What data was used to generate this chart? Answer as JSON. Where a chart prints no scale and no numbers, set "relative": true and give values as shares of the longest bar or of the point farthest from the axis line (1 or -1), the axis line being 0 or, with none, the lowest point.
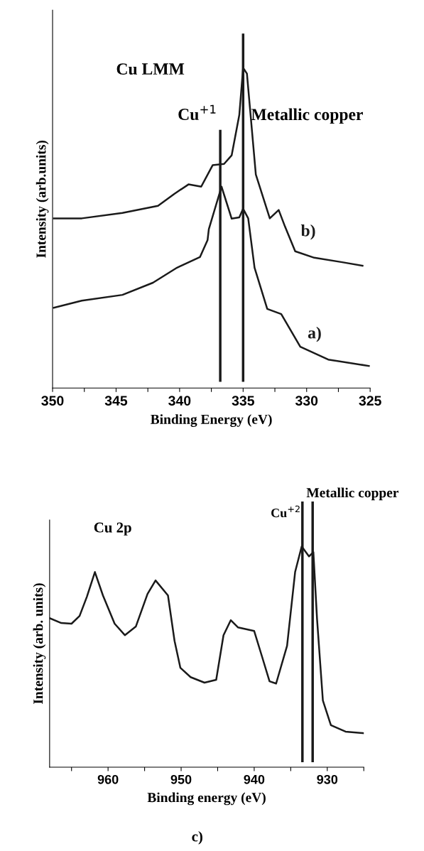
{
  "chart_data": [
    {
      "type": "line",
      "relative": true,
      "xlabel": "Binding Energy (eV)",
      "ylabel": "Intensity (arb.units)",
      "xlim": [
        350,
        325
      ],
      "xticks": [
        350,
        {
          "value": 347.5,
          "label": null
        },
        345,
        {
          "value": 342.5,
          "label": null
        },
        340,
        {
          "value": 337.5,
          "label": null
        },
        335,
        {
          "value": 332.5,
          "label": null
        },
        330,
        {
          "value": 327.5,
          "label": null
        },
        325
      ],
      "series": [
        {
          "name": "b)",
          "color": "#1a1a1a",
          "x": [
            349.9,
            347.7,
            344.5,
            341.7,
            340.4,
            339.3,
            338.3,
            337.4,
            336.5,
            335.9,
            335.3,
            335.0,
            334.7,
            334.0,
            332.9,
            332.2,
            331.7,
            330.9,
            329.4,
            327.2,
            325.6
          ],
          "values": [
            0.53,
            0.53,
            0.547,
            0.569,
            0.607,
            0.636,
            0.629,
            0.696,
            0.7,
            0.727,
            0.853,
            1.0,
            0.982,
            0.667,
            0.53,
            0.556,
            0.504,
            0.427,
            0.407,
            0.393,
            0.382
          ]
        },
        {
          "name": "a)",
          "color": "#1a1a1a",
          "x": [
            349.9,
            347.7,
            344.5,
            342.1,
            340.2,
            338.4,
            337.8,
            337.7,
            336.7,
            335.9,
            335.3,
            335.0,
            334.6,
            334.1,
            333.1,
            332.0,
            330.5,
            328.3,
            325.1
          ],
          "values": [
            0.251,
            0.273,
            0.291,
            0.329,
            0.376,
            0.409,
            0.462,
            0.496,
            0.629,
            0.529,
            0.533,
            0.56,
            0.53,
            0.376,
            0.247,
            0.231,
            0.129,
            0.089,
            0.069
          ]
        }
      ],
      "ref_lines": [
        {
          "axis": "x",
          "value": 336.8,
          "label": "Cu$^{+1}$",
          "color": "#1a1a1a"
        },
        {
          "axis": "x",
          "value": 335.0,
          "label": "Metallic copper",
          "color": "#1a1a1a"
        }
      ],
      "annotations": [
        "Cu LMM"
      ]
    },
    {
      "type": "line",
      "relative": true,
      "xlabel": "Binding energy (eV)",
      "ylabel": "Intensity (arb. units)",
      "xlim": [
        968,
        925
      ],
      "xticks": [
        {
          "value": 965,
          "label": null
        },
        960,
        {
          "value": 955,
          "label": null
        },
        950,
        {
          "value": 945,
          "label": null
        },
        940,
        {
          "value": 935,
          "label": null
        },
        930,
        {
          "value": 925,
          "label": null
        }
      ],
      "series": [
        {
          "color": "#1a1a1a",
          "x": [
            968.0,
            966.4,
            965.0,
            963.9,
            962.9,
            961.8,
            960.7,
            959.1,
            957.7,
            956.2,
            954.6,
            953.5,
            951.8,
            950.9,
            950.1,
            948.7,
            946.8,
            945.2,
            944.2,
            943.2,
            942.2,
            940.0,
            938.9,
            937.9,
            937.0,
            935.5,
            934.4,
            933.5,
            932.5,
            931.9,
            931.4,
            930.6,
            929.5,
            927.5,
            925.0
          ],
          "values": [
            0.675,
            0.653,
            0.65,
            0.685,
            0.772,
            0.884,
            0.778,
            0.65,
            0.598,
            0.637,
            0.785,
            0.846,
            0.778,
            0.572,
            0.45,
            0.408,
            0.383,
            0.396,
            0.598,
            0.666,
            0.633,
            0.617,
            0.498,
            0.389,
            0.379,
            0.55,
            0.884,
            1.0,
            0.955,
            0.974,
            0.672,
            0.302,
            0.19,
            0.161,
            0.154
          ]
        }
      ],
      "ref_lines": [
        {
          "axis": "x",
          "value": 933.4,
          "label": "Cu$^{+2}$",
          "color": "#1a1a1a"
        },
        {
          "axis": "x",
          "value": 932.0,
          "label": "Metallic copper",
          "color": "#1a1a1a"
        }
      ],
      "annotations": [
        "Cu 2p",
        "c)"
      ]
    }
  ]
}
